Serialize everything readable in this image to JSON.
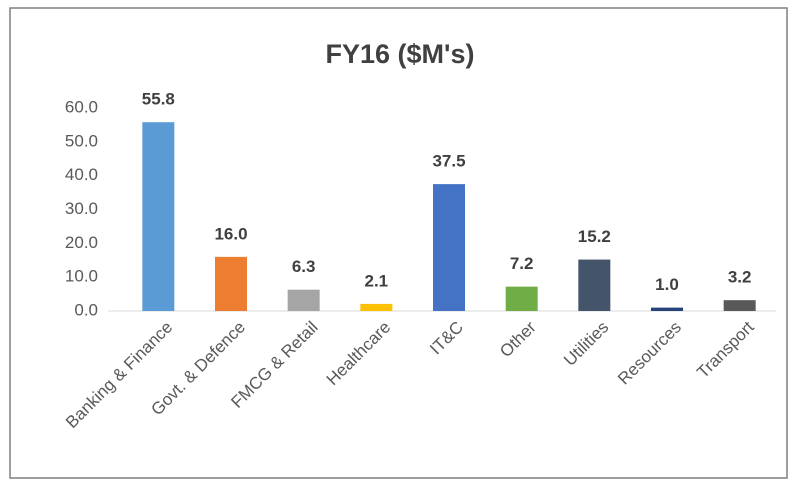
{
  "chart_data": {
    "type": "bar",
    "title": "FY16 ($M's)",
    "categories": [
      "Banking & Finance",
      "Govt. & Defence",
      "FMCG & Retail",
      "Healthcare",
      "IT&C",
      "Other",
      "Utilities",
      "Resources",
      "Transport"
    ],
    "values": [
      55.8,
      16,
      6.3,
      2.1,
      37.5,
      7.2,
      15.2,
      1,
      3.2
    ],
    "value_labels": [
      "55.8",
      "16.0",
      "6.3",
      "2.1",
      "37.5",
      "7.2",
      "15.2",
      "1.0",
      "3.2"
    ],
    "colors": [
      "#5b9bd5",
      "#ed7d31",
      "#a5a5a5",
      "#ffc000",
      "#4472c4",
      "#70ad47",
      "#44546a",
      "#264478",
      "#595959"
    ],
    "ylim": [
      0,
      60
    ],
    "yticks": [
      {
        "value": 0,
        "label": "0.0"
      },
      {
        "value": 10,
        "label": "10.0"
      },
      {
        "value": 20,
        "label": "20.0"
      },
      {
        "value": 30,
        "label": "30.0"
      },
      {
        "value": 40,
        "label": "40.0"
      },
      {
        "value": 50,
        "label": "50.0"
      },
      {
        "value": 60,
        "label": "60.0"
      }
    ],
    "grid": false
  }
}
